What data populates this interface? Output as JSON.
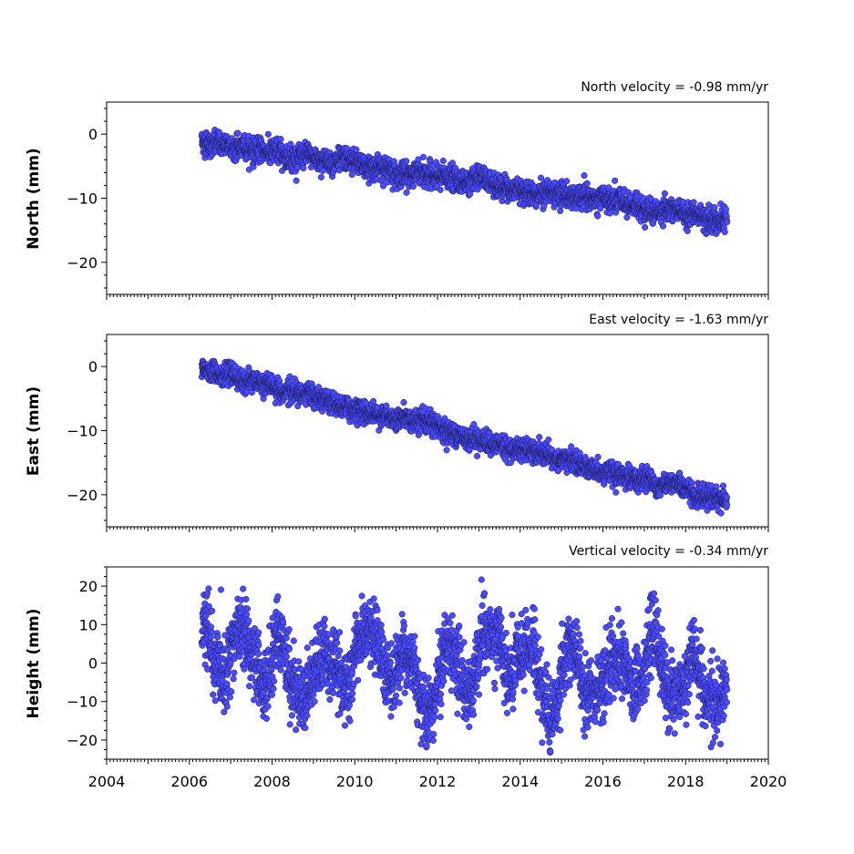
{
  "chart_data": [
    {
      "type": "scatter",
      "title": "North velocity = -0.98 mm/yr",
      "ylabel": "North (mm)",
      "xlim": [
        2004,
        2020
      ],
      "ylim": [
        -25,
        5
      ],
      "yticks": [
        0,
        -10,
        -20
      ],
      "marker_color": "#4b4bff",
      "edge_color": "#1a1a55",
      "series": [
        {
          "name": "",
          "trend": {
            "x": [
              2006.3,
              2019.0
            ],
            "y": [
              -1.2,
              -13.4
            ]
          },
          "noise_sd": 0.9,
          "x_range": [
            2006.3,
            2019.0
          ],
          "points": 2900
        }
      ]
    },
    {
      "type": "scatter",
      "title": "East velocity = -1.63 mm/yr",
      "ylabel": "East (mm)",
      "xlim": [
        2004,
        2020
      ],
      "ylim": [
        -25,
        5
      ],
      "yticks": [
        0,
        -10,
        -20
      ],
      "marker_color": "#4b4bff",
      "edge_color": "#1a1a55",
      "series": [
        {
          "name": "",
          "trend": {
            "x": [
              2006.3,
              2019.0
            ],
            "y": [
              -0.5,
              -21.0
            ]
          },
          "noise_sd": 0.8,
          "x_range": [
            2006.3,
            2019.0
          ],
          "points": 2900
        }
      ]
    },
    {
      "type": "scatter",
      "title": "Vertical velocity = -0.34 mm/yr",
      "ylabel": "Height (mm)",
      "xlim": [
        2004,
        2020
      ],
      "ylim": [
        -25,
        25
      ],
      "yticks": [
        20,
        10,
        0,
        -10,
        -20
      ],
      "xticks": [
        "2004",
        "2006",
        "2008",
        "2010",
        "2012",
        "2014",
        "2016",
        "2018",
        "2020"
      ],
      "marker_color": "#4b4bff",
      "edge_color": "#1a1a55",
      "series": [
        {
          "name": "",
          "trend": {
            "x": [
              2006.3,
              2019.0
            ],
            "y": [
              0.5,
              -3.8
            ]
          },
          "annual_amplitude": 6,
          "noise_sd": 4.5,
          "x_range": [
            2006.3,
            2019.0
          ],
          "points": 2900
        }
      ]
    }
  ]
}
